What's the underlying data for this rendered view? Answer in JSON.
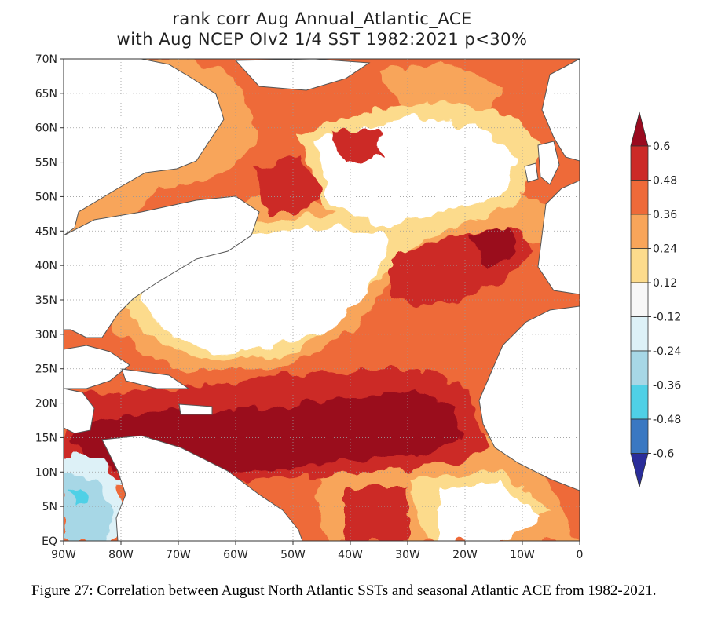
{
  "figure": {
    "title_line1": "rank corr Aug  Annual_Atlantic_ACE",
    "title_line2": "with Aug NCEP OIv2 1/4 SST 1982:2021 p<30%",
    "caption": "Figure 27: Correlation between August North Atlantic SSTs and seasonal Atlantic ACE from 1982-2021."
  },
  "axes": {
    "lon_labels": [
      "90W",
      "80W",
      "70W",
      "60W",
      "50W",
      "40W",
      "30W",
      "20W",
      "10W",
      "0"
    ],
    "lat_labels": [
      "70N",
      "65N",
      "60N",
      "55N",
      "50N",
      "45N",
      "40N",
      "35N",
      "30N",
      "25N",
      "20N",
      "15N",
      "10N",
      "5N",
      "EQ"
    ],
    "lon_range": [
      -90,
      0
    ],
    "lat_range": [
      0,
      70
    ]
  },
  "colorbar": {
    "labels": [
      "0.6",
      "0.48",
      "0.36",
      "0.24",
      "0.12",
      "-0.12",
      "-0.24",
      "-0.36",
      "-0.48",
      "-0.6"
    ],
    "colors": [
      "#9a0a1f",
      "#cc2a27",
      "#ee6a39",
      "#f8a55a",
      "#fcdb8c",
      "#f7f7f7",
      "#ddf1f7",
      "#a7d7e6",
      "#4fd0e6",
      "#3a78c2",
      "#2a2d9a"
    ]
  },
  "colors": {
    "land": "#ffffff",
    "coast": "#555555"
  },
  "chart_data": {
    "type": "heatmap",
    "title": "rank corr Aug  Annual_Atlantic_ACE with Aug NCEP OIv2 1/4 SST 1982:2021 p<30%",
    "xlim": [
      -90,
      0
    ],
    "ylim": [
      0,
      70
    ],
    "contour_levels": [
      -0.6,
      -0.48,
      -0.36,
      -0.24,
      -0.12,
      0.12,
      0.24,
      0.36,
      0.48,
      0.6
    ]
  }
}
